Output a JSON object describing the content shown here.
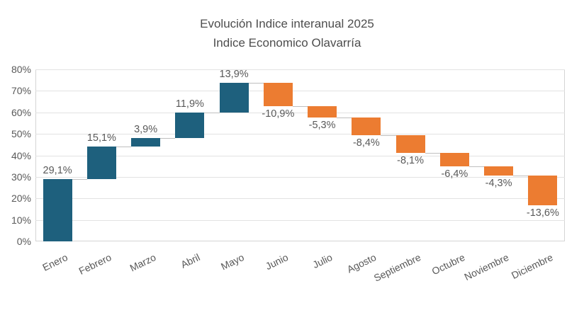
{
  "chart_data": {
    "type": "bar",
    "subtype": "waterfall",
    "title": "Evolución Indice interanual 2025",
    "subtitle": "Indice Economico Olavarría",
    "categories": [
      "Enero",
      "Febrero",
      "Marzo",
      "Abril",
      "Mayo",
      "Junio",
      "Julio",
      "Agosto",
      "Septiembre",
      "Octubre",
      "Noviembre",
      "Diciembre"
    ],
    "values": [
      29.1,
      15.1,
      3.9,
      11.9,
      13.9,
      -10.9,
      -5.3,
      -8.4,
      -8.1,
      -6.4,
      -4.3,
      -13.6
    ],
    "value_labels": [
      "29,1%",
      "15,1%",
      "3,9%",
      "11,9%",
      "13,9%",
      "-10,9%",
      "-5,3%",
      "-8,4%",
      "-8,1%",
      "-6,4%",
      "-4,3%",
      "-13,6%"
    ],
    "y_ticks": [
      "0%",
      "10%",
      "20%",
      "30%",
      "40%",
      "50%",
      "60%",
      "70%",
      "80%"
    ],
    "ylim": [
      0,
      80
    ],
    "grid": true,
    "legend": "none",
    "colors": {
      "increase": "#1e607d",
      "decrease": "#ec7c31",
      "gridline": "#e2e2e2",
      "connector": "#bfbfbf",
      "text": "#595959",
      "title": "#4d4d4d"
    }
  }
}
